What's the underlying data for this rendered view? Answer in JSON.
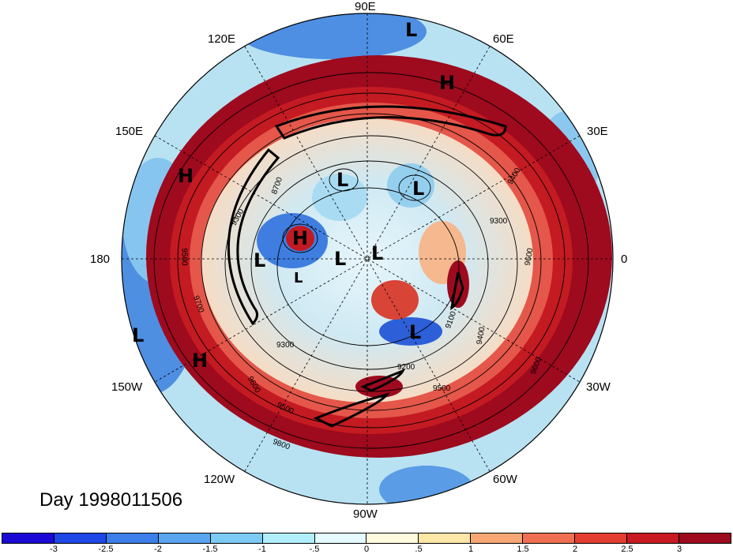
{
  "title": "Day 1998011506",
  "longitude_labels": [
    "90E",
    "60E",
    "30E",
    "0",
    "30W",
    "60W",
    "90W",
    "120W",
    "150W",
    "180",
    "150E",
    "120E"
  ],
  "pressure_systems": [
    "L",
    "H",
    "H",
    "L",
    "L",
    "H",
    "L",
    "L",
    "L",
    "L",
    "L",
    "H"
  ],
  "contour_labels": [
    "9300",
    "9400",
    "9500",
    "9600",
    "9700",
    "9300",
    "9200",
    "9500",
    "9400",
    "9100",
    "9600",
    "9700",
    "9800",
    "8700"
  ],
  "colorbar": {
    "colors": [
      "#1b0ad6",
      "#1e47e6",
      "#3c7ee9",
      "#5aa5f0",
      "#7ccbf5",
      "#b0eefc",
      "#e4fbff",
      "#fdfadd",
      "#fde7a6",
      "#f8a774",
      "#f06e51",
      "#e43d31",
      "#c81a22",
      "#9e0a1e"
    ],
    "tick_labels": [
      "-3",
      "-2.5",
      "-2",
      "-1.5",
      "-1",
      "-.5",
      "0",
      ".5",
      "1",
      "1.5",
      "2",
      "2.5",
      "3"
    ]
  }
}
